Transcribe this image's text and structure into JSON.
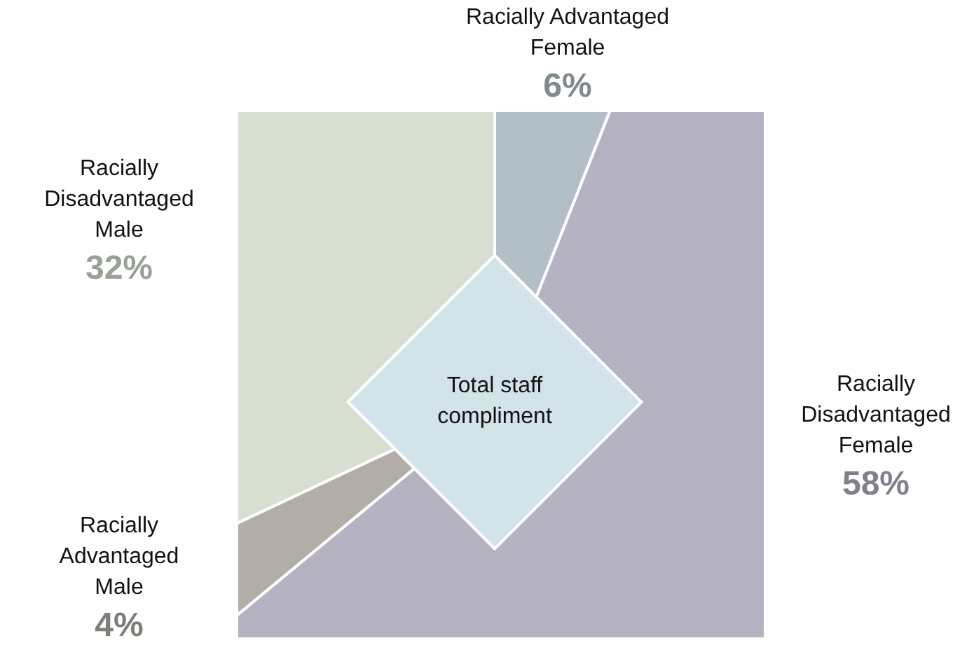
{
  "chart_data": {
    "type": "pie",
    "categories": [
      "Racially Advantaged Female",
      "Racially Disadvantaged Female",
      "Racially Advantaged Male",
      "Racially Disadvantaged Male"
    ],
    "values": [
      6,
      58,
      4,
      32
    ],
    "value_labels": [
      "6%",
      "58%",
      "4%",
      "32%"
    ],
    "colors": [
      "#b2bfc7",
      "#b5b2c2",
      "#b3ada8",
      "#d6dfd0"
    ],
    "annotations": [
      "Total staff compliment"
    ],
    "legend": false
  }
}
